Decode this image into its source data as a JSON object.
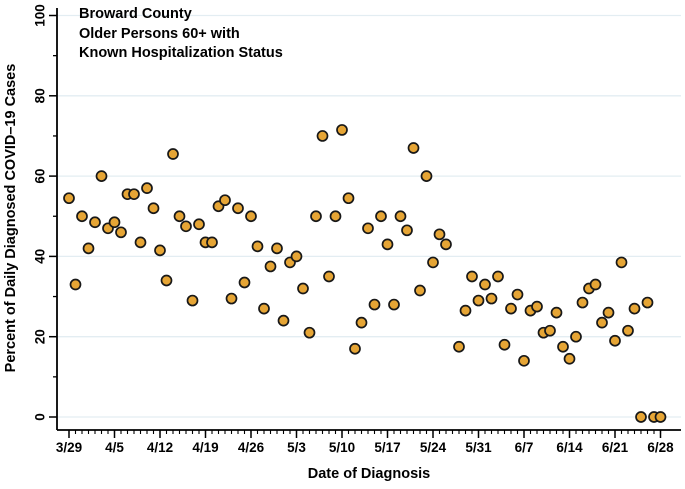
{
  "title": {
    "line1": "Broward County",
    "line2": "Older Persons 60+ with",
    "line3": "Known Hospitalization Status"
  },
  "colors": {
    "marker_fill": "#E6A535",
    "marker_stroke": "#181818",
    "gridline": "#e3edf2",
    "axis": "#000000",
    "background": "#ffffff"
  },
  "chart_data": {
    "type": "scatter",
    "title": "Broward County Older Persons 60+ with Known Hospitalization Status",
    "xlabel": "Date of Diagnosis",
    "ylabel": "Percent of Daily Diagnosed COVID–19 Cases",
    "ylim": [
      0,
      100
    ],
    "y_major_ticks": [
      0,
      20,
      40,
      60,
      80,
      100
    ],
    "y_minor_tick_step": 10,
    "x_minor_tick_step_days": 1,
    "grid": true,
    "legend": false,
    "x_tick_labels": [
      "3/29",
      "4/5",
      "4/12",
      "4/19",
      "4/26",
      "5/3",
      "5/10",
      "5/17",
      "5/24",
      "5/31",
      "6/7",
      "6/14",
      "6/21",
      "6/28"
    ],
    "x_tick_day_indices": [
      0,
      7,
      14,
      21,
      28,
      35,
      42,
      49,
      56,
      63,
      70,
      77,
      84,
      91
    ],
    "points": [
      {
        "d": 0,
        "date": "3/29",
        "v": 54.5
      },
      {
        "d": 1,
        "date": "3/30",
        "v": 33
      },
      {
        "d": 2,
        "date": "3/31",
        "v": 50
      },
      {
        "d": 3,
        "date": "4/1",
        "v": 42
      },
      {
        "d": 4,
        "date": "4/2",
        "v": 48.5
      },
      {
        "d": 5,
        "date": "4/3",
        "v": 60
      },
      {
        "d": 6,
        "date": "4/4",
        "v": 47
      },
      {
        "d": 7,
        "date": "4/5",
        "v": 48.5
      },
      {
        "d": 8,
        "date": "4/6",
        "v": 46
      },
      {
        "d": 9,
        "date": "4/7",
        "v": 55.5
      },
      {
        "d": 10,
        "date": "4/8",
        "v": 55.5
      },
      {
        "d": 11,
        "date": "4/9",
        "v": 43.5
      },
      {
        "d": 12,
        "date": "4/10",
        "v": 57
      },
      {
        "d": 13,
        "date": "4/11",
        "v": 52
      },
      {
        "d": 14,
        "date": "4/12",
        "v": 41.5
      },
      {
        "d": 15,
        "date": "4/13",
        "v": 34
      },
      {
        "d": 16,
        "date": "4/14",
        "v": 65.5
      },
      {
        "d": 17,
        "date": "4/15",
        "v": 50
      },
      {
        "d": 18,
        "date": "4/16",
        "v": 47.5
      },
      {
        "d": 19,
        "date": "4/17",
        "v": 29
      },
      {
        "d": 20,
        "date": "4/18",
        "v": 48
      },
      {
        "d": 21,
        "date": "4/19",
        "v": 43.5
      },
      {
        "d": 22,
        "date": "4/20",
        "v": 43.5
      },
      {
        "d": 23,
        "date": "4/21",
        "v": 52.5
      },
      {
        "d": 24,
        "date": "4/22",
        "v": 54
      },
      {
        "d": 25,
        "date": "4/23",
        "v": 29.5
      },
      {
        "d": 26,
        "date": "4/24",
        "v": 52
      },
      {
        "d": 27,
        "date": "4/25",
        "v": 33.5
      },
      {
        "d": 28,
        "date": "4/26",
        "v": 50
      },
      {
        "d": 29,
        "date": "4/27",
        "v": 42.5
      },
      {
        "d": 30,
        "date": "4/28",
        "v": 27
      },
      {
        "d": 31,
        "date": "4/29",
        "v": 37.5
      },
      {
        "d": 32,
        "date": "4/30",
        "v": 42
      },
      {
        "d": 33,
        "date": "5/1",
        "v": 24
      },
      {
        "d": 34,
        "date": "5/2",
        "v": 38.5
      },
      {
        "d": 35,
        "date": "5/3",
        "v": 40
      },
      {
        "d": 36,
        "date": "5/4",
        "v": 32
      },
      {
        "d": 37,
        "date": "5/5",
        "v": 21
      },
      {
        "d": 38,
        "date": "5/6",
        "v": 50
      },
      {
        "d": 39,
        "date": "5/7",
        "v": 70
      },
      {
        "d": 40,
        "date": "5/8",
        "v": 35
      },
      {
        "d": 41,
        "date": "5/9",
        "v": 50
      },
      {
        "d": 42,
        "date": "5/10",
        "v": 71.5
      },
      {
        "d": 43,
        "date": "5/11",
        "v": 54.5
      },
      {
        "d": 44,
        "date": "5/12",
        "v": 17
      },
      {
        "d": 45,
        "date": "5/13",
        "v": 23.5
      },
      {
        "d": 46,
        "date": "5/14",
        "v": 47
      },
      {
        "d": 47,
        "date": "5/15",
        "v": 28
      },
      {
        "d": 48,
        "date": "5/16",
        "v": 50
      },
      {
        "d": 49,
        "date": "5/17",
        "v": 43
      },
      {
        "d": 50,
        "date": "5/18",
        "v": 28
      },
      {
        "d": 51,
        "date": "5/19",
        "v": 50
      },
      {
        "d": 52,
        "date": "5/20",
        "v": 46.5
      },
      {
        "d": 53,
        "date": "5/21",
        "v": 67
      },
      {
        "d": 54,
        "date": "5/22",
        "v": 31.5
      },
      {
        "d": 55,
        "date": "5/23",
        "v": 60
      },
      {
        "d": 56,
        "date": "5/24",
        "v": 38.5
      },
      {
        "d": 57,
        "date": "5/25",
        "v": 45.5
      },
      {
        "d": 58,
        "date": "5/26",
        "v": 43
      },
      {
        "d": 60,
        "date": "5/28",
        "v": 17.5
      },
      {
        "d": 61,
        "date": "5/29",
        "v": 26.5
      },
      {
        "d": 62,
        "date": "5/30",
        "v": 35
      },
      {
        "d": 63,
        "date": "5/31",
        "v": 29
      },
      {
        "d": 64,
        "date": "6/1",
        "v": 33
      },
      {
        "d": 65,
        "date": "6/2",
        "v": 29.5
      },
      {
        "d": 66,
        "date": "6/3",
        "v": 35
      },
      {
        "d": 67,
        "date": "6/4",
        "v": 18
      },
      {
        "d": 68,
        "date": "6/5",
        "v": 27
      },
      {
        "d": 69,
        "date": "6/6",
        "v": 30.5
      },
      {
        "d": 70,
        "date": "6/7",
        "v": 14
      },
      {
        "d": 71,
        "date": "6/8",
        "v": 26.5
      },
      {
        "d": 72,
        "date": "6/9",
        "v": 27.5
      },
      {
        "d": 73,
        "date": "6/10",
        "v": 21
      },
      {
        "d": 74,
        "date": "6/11",
        "v": 21.5
      },
      {
        "d": 75,
        "date": "6/12",
        "v": 26
      },
      {
        "d": 76,
        "date": "6/13",
        "v": 17.5
      },
      {
        "d": 77,
        "date": "6/14",
        "v": 14.5
      },
      {
        "d": 78,
        "date": "6/15",
        "v": 20
      },
      {
        "d": 79,
        "date": "6/16",
        "v": 28.5
      },
      {
        "d": 80,
        "date": "6/17",
        "v": 32
      },
      {
        "d": 81,
        "date": "6/18",
        "v": 33
      },
      {
        "d": 82,
        "date": "6/19",
        "v": 23.5
      },
      {
        "d": 83,
        "date": "6/20",
        "v": 26
      },
      {
        "d": 84,
        "date": "6/21",
        "v": 19
      },
      {
        "d": 85,
        "date": "6/22",
        "v": 38.5
      },
      {
        "d": 86,
        "date": "6/23",
        "v": 21.5
      },
      {
        "d": 87,
        "date": "6/24",
        "v": 27
      },
      {
        "d": 88,
        "date": "6/25",
        "v": 0
      },
      {
        "d": 89,
        "date": "6/26",
        "v": 28.5
      },
      {
        "d": 90,
        "date": "6/27",
        "v": 0
      },
      {
        "d": 91,
        "date": "6/28",
        "v": 0
      }
    ]
  }
}
